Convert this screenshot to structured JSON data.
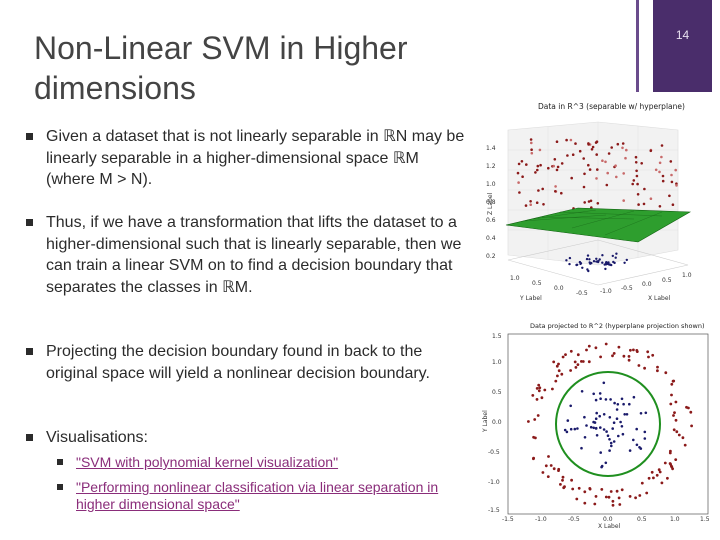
{
  "slide": {
    "title": "Non-Linear SVM in Higher dimensions",
    "number": "14"
  },
  "bullets": [
    {
      "text": "Given a dataset  that is not linearly separable in  ℝN  may be linearly separable in a higher-dimensional space   ℝM (where M > N)."
    },
    {
      "text": "Thus, if we have a transformation  that lifts the dataset  to a higher-dimensional  such that  is linearly separable, then we can train a linear SVM on  to find a decision boundary  that separates the classes in  ℝM."
    },
    {
      "text": "Projecting the decision boundary  found in  back to the original space  will yield a nonlinear decision boundary."
    },
    {
      "text": "Visualisations:"
    }
  ],
  "links": [
    {
      "label": "\"SVM with polynomial kernel visualization\""
    },
    {
      "label": "\"Performing nonlinear classification via linear separation in higher dimensional space\""
    }
  ],
  "figure_3d": {
    "title": "Data in R^3 (separable w/ hyperplane)",
    "z_label": "Z Label",
    "x_label": "X Label",
    "y_label": "Y Label",
    "z_ticks": [
      "1.4",
      "1.2",
      "1.0",
      "0.8",
      "0.6",
      "0.4",
      "0.2"
    ],
    "x_ticks": [
      "-1.0",
      "-0.5",
      "0.0",
      "0.5",
      "1.0"
    ],
    "y_ticks": [
      "1.0",
      "0.5",
      "0.0",
      "-0.5"
    ]
  },
  "figure_2d": {
    "title": "Data projected to R^2 (hyperplane projection shown)",
    "x_label": "X Label",
    "y_label": "Y Label",
    "y_ticks": [
      "1.5",
      "1.0",
      "0.5",
      "0.0",
      "-0.5",
      "-1.0",
      "-1.5"
    ],
    "x_ticks": [
      "-1.5",
      "-1.0",
      "-0.5",
      "0.0",
      "0.5",
      "1.0",
      "1.5"
    ]
  },
  "colors": {
    "accent": "#4a2d6b",
    "link": "#8a2d7a",
    "class_outer": "#8b1a1a",
    "class_inner": "#1a1a6b",
    "hyperplane": "#1f8f1f"
  }
}
